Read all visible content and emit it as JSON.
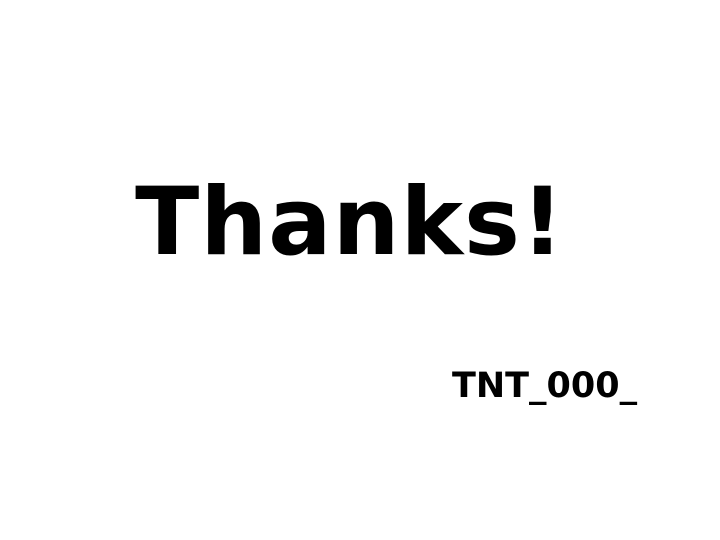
{
  "slide": {
    "title": "Thanks!",
    "code": "TNT_000_"
  },
  "colors": {
    "background": "#ffffff",
    "text": "#000000"
  }
}
